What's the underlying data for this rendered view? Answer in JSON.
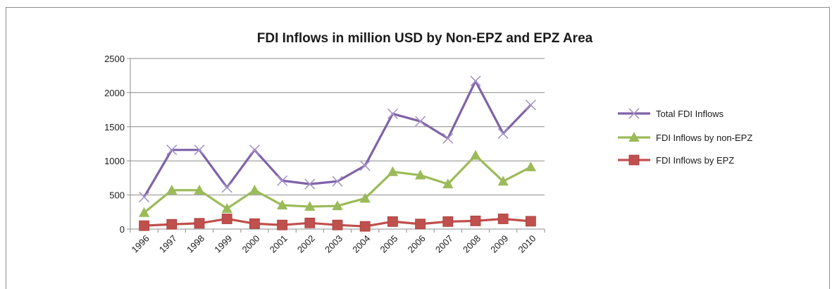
{
  "chart_data": {
    "type": "line",
    "title": "FDI Inflows in million USD by Non-EPZ and EPZ Area",
    "xlabel": "",
    "ylabel": "",
    "x": [
      "1996",
      "1997",
      "1998",
      "1999",
      "2000",
      "2001",
      "2002",
      "2003",
      "2004",
      "2005",
      "2006",
      "2007",
      "2008",
      "2009",
      "2010"
    ],
    "ylim": [
      0,
      2500
    ],
    "yticks": [
      0,
      500,
      1000,
      1500,
      2000,
      2500
    ],
    "grid": true,
    "legend_position": "right",
    "series": [
      {
        "name": "Total FDI Inflows",
        "color": "#7f62a8",
        "marker": "x",
        "values": [
          470,
          1160,
          1160,
          610,
          1160,
          710,
          660,
          700,
          930,
          1690,
          1580,
          1330,
          2170,
          1400,
          1820
        ]
      },
      {
        "name": "FDI Inflows by non-EPZ",
        "color": "#9bbb59",
        "marker": "triangle",
        "values": [
          240,
          570,
          570,
          300,
          570,
          350,
          330,
          340,
          450,
          840,
          790,
          660,
          1080,
          700,
          910
        ]
      },
      {
        "name": "FDI Inflows by EPZ",
        "color": "#c0504d",
        "marker": "square",
        "values": [
          50,
          70,
          85,
          150,
          80,
          60,
          90,
          60,
          40,
          110,
          75,
          110,
          120,
          150,
          115
        ]
      }
    ]
  }
}
